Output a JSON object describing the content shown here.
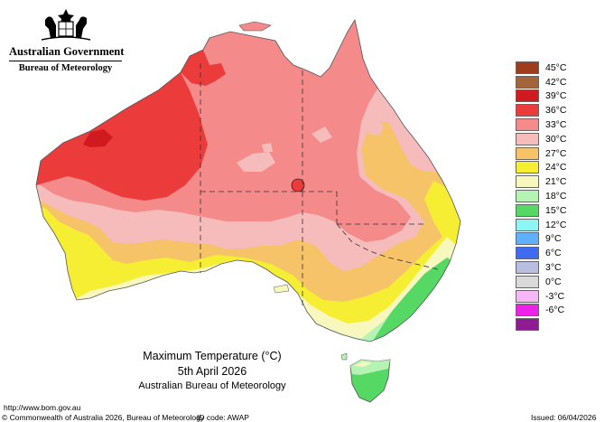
{
  "header": {
    "government": "Australian Government",
    "bureau": "Bureau of Meteorology"
  },
  "legend": [
    {
      "label": "45°C",
      "color": "#9e3d1b"
    },
    {
      "label": "42°C",
      "color": "#a3643a"
    },
    {
      "label": "39°C",
      "color": "#d01a1f"
    },
    {
      "label": "36°C",
      "color": "#ec3b3b"
    },
    {
      "label": "33°C",
      "color": "#f48a8a"
    },
    {
      "label": "30°C",
      "color": "#f6bcbc"
    },
    {
      "label": "27°C",
      "color": "#f7c369"
    },
    {
      "label": "24°C",
      "color": "#f6ee32"
    },
    {
      "label": "21°C",
      "color": "#f8f7bd"
    },
    {
      "label": "18°C",
      "color": "#b4f3b3"
    },
    {
      "label": "15°C",
      "color": "#56d865"
    },
    {
      "label": "12°C",
      "color": "#8ef5f5"
    },
    {
      "label": "9°C",
      "color": "#5fb0ff"
    },
    {
      "label": "6°C",
      "color": "#3f6bf0"
    },
    {
      "label": "3°C",
      "color": "#b9bde0"
    },
    {
      "label": "0°C",
      "color": "#d9d9d9"
    },
    {
      "label": "-3°C",
      "color": "#f6b7f6"
    },
    {
      "label": "-6°C",
      "color": "#ee1fe9"
    },
    {
      "label": "",
      "color": "#8f1b94"
    }
  ],
  "caption": {
    "title": "Maximum Temperature (°C)",
    "date": "5th April 2026",
    "org": "Australian Bureau of Meteorology"
  },
  "footer": {
    "url": "http://www.bom.gov.au",
    "copyright": "© Commonwealth of Australia 2026, Bureau of Meteorology",
    "id_code": "ID code: AWAP",
    "issued": "Issued: 06/04/2026"
  }
}
